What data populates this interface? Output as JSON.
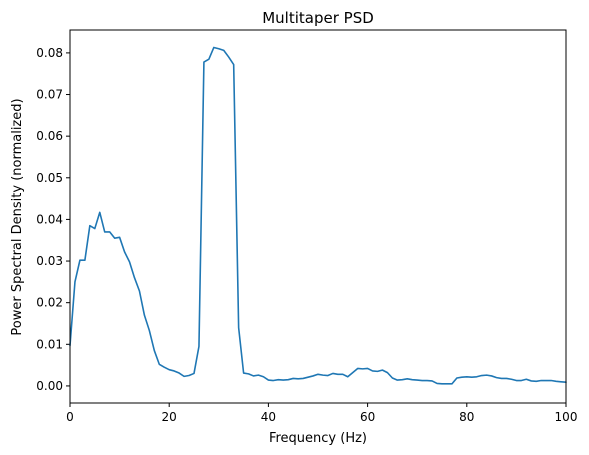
{
  "chart_data": {
    "type": "line",
    "title": "Multitaper PSD",
    "xlabel": "Frequency (Hz)",
    "ylabel": "Power Spectral Density (normalized)",
    "xlim": [
      0,
      100
    ],
    "ylim": [
      -0.0041,
      0.0855
    ],
    "x_ticks": [
      0,
      20,
      40,
      60,
      80,
      100
    ],
    "y_ticks": [
      0.0,
      0.01,
      0.02,
      0.03,
      0.04,
      0.05,
      0.06,
      0.07,
      0.08
    ],
    "x_tick_labels": [
      "0",
      "20",
      "40",
      "60",
      "80",
      "100"
    ],
    "y_tick_labels": [
      "0.00",
      "0.01",
      "0.02",
      "0.03",
      "0.04",
      "0.05",
      "0.06",
      "0.07",
      "0.08"
    ],
    "grid": false,
    "legend": "none",
    "series": [
      {
        "color": "#1f77b4",
        "x": [
          0,
          1,
          2,
          3,
          4,
          5,
          6,
          7,
          8,
          9,
          10,
          11,
          12,
          13,
          14,
          15,
          16,
          17,
          18,
          19,
          20,
          21,
          22,
          23,
          24,
          25,
          26,
          27,
          28,
          29,
          30,
          31,
          32,
          33,
          34,
          35,
          36,
          37,
          38,
          39,
          40,
          41,
          42,
          43,
          44,
          45,
          46,
          47,
          48,
          49,
          50,
          51,
          52,
          53,
          54,
          55,
          56,
          57,
          58,
          59,
          60,
          61,
          62,
          63,
          64,
          65,
          66,
          67,
          68,
          69,
          70,
          71,
          72,
          73,
          74,
          75,
          76,
          77,
          78,
          79,
          80,
          81,
          82,
          83,
          84,
          85,
          86,
          87,
          88,
          89,
          90,
          91,
          92,
          93,
          94,
          95,
          96,
          97,
          98,
          99,
          100
        ],
        "y": [
          0.0097,
          0.025,
          0.0302,
          0.0302,
          0.0385,
          0.0378,
          0.0417,
          0.037,
          0.037,
          0.0355,
          0.0357,
          0.0322,
          0.0298,
          0.026,
          0.0228,
          0.017,
          0.0133,
          0.0085,
          0.0052,
          0.0045,
          0.0039,
          0.0036,
          0.0031,
          0.0023,
          0.0025,
          0.003,
          0.0095,
          0.0778,
          0.0785,
          0.0813,
          0.081,
          0.0806,
          0.079,
          0.0772,
          0.014,
          0.0031,
          0.0029,
          0.0024,
          0.0026,
          0.0022,
          0.0014,
          0.0013,
          0.0015,
          0.0014,
          0.0015,
          0.0018,
          0.0017,
          0.0018,
          0.0021,
          0.0024,
          0.0028,
          0.0026,
          0.0025,
          0.003,
          0.0028,
          0.0028,
          0.0022,
          0.0032,
          0.0042,
          0.0041,
          0.0042,
          0.0036,
          0.0035,
          0.0038,
          0.0032,
          0.0019,
          0.0014,
          0.0015,
          0.0017,
          0.0015,
          0.0014,
          0.0013,
          0.0013,
          0.0012,
          0.0006,
          0.0005,
          0.0005,
          0.0005,
          0.0019,
          0.0021,
          0.0022,
          0.0021,
          0.0022,
          0.0025,
          0.0026,
          0.0024,
          0.002,
          0.0018,
          0.0018,
          0.0016,
          0.0013,
          0.0013,
          0.0016,
          0.0012,
          0.0011,
          0.0013,
          0.0013,
          0.0013,
          0.0011,
          0.001,
          0.0009
        ]
      }
    ]
  }
}
